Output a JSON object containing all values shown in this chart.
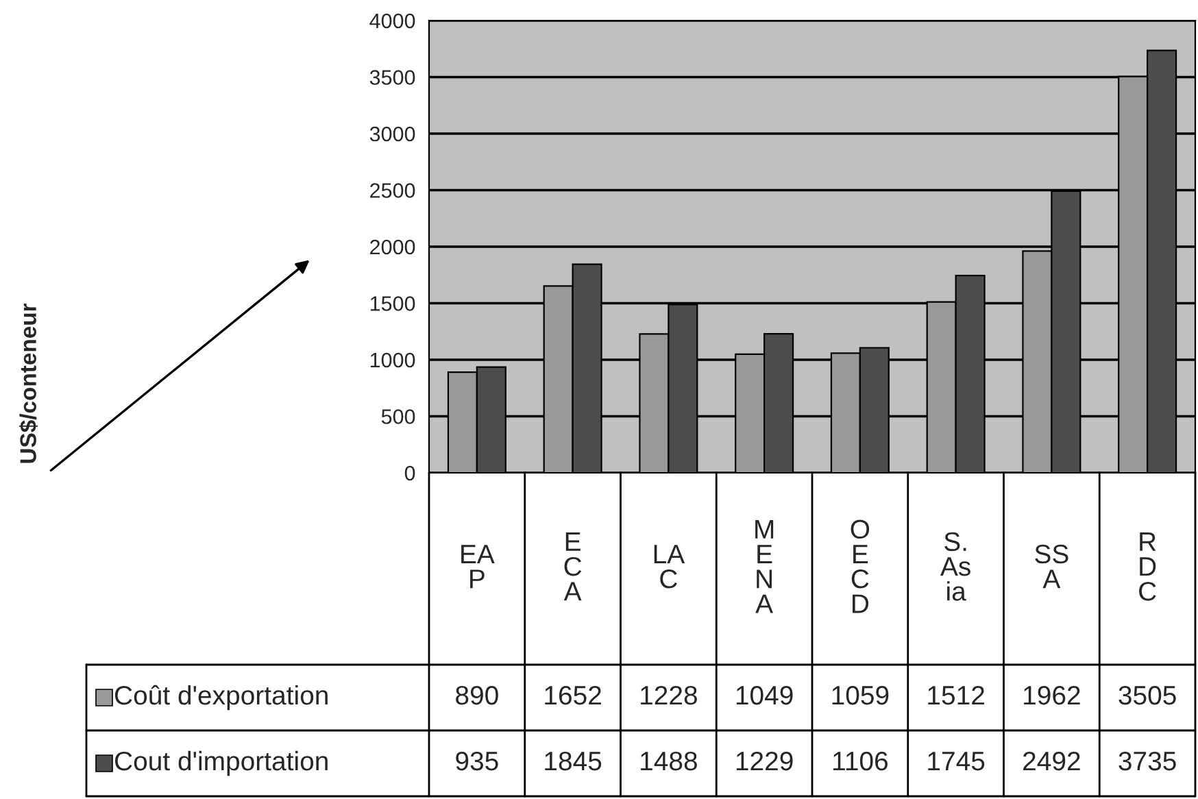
{
  "chart_data": {
    "type": "bar",
    "annotations": [
      "US$/conteneur"
    ],
    "legend": "bottom left",
    "categories": [
      "EA\nP",
      "E\nC\nA",
      "LA\nC",
      "M\nE\nN\nA",
      "O\nE\nC\nD",
      "S.\nAs\nia",
      "SS\nA",
      "R\nD\nC"
    ],
    "series": [
      {
        "name": "Coût d'exportation",
        "color": "#999999",
        "values": [
          890,
          1652,
          1228,
          1049,
          1059,
          1512,
          1962,
          3505
        ]
      },
      {
        "name": "Cout d'importation",
        "color": "#4d4d4d",
        "values": [
          935,
          1845,
          1488,
          1229,
          1106,
          1745,
          2492,
          3735
        ]
      }
    ],
    "ylim": [
      0,
      4000
    ],
    "yticks": [
      0,
      500,
      1000,
      1500,
      2000,
      2500,
      3000,
      3500,
      4000
    ],
    "grid": "y",
    "data_labels": true
  }
}
